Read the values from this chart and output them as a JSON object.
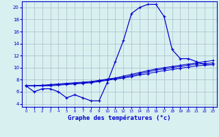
{
  "hours": [
    0,
    1,
    2,
    3,
    4,
    5,
    6,
    7,
    8,
    9,
    10,
    11,
    12,
    13,
    14,
    15,
    16,
    17,
    18,
    19,
    20,
    21,
    22,
    23
  ],
  "temp_main": [
    7.0,
    6.0,
    6.5,
    6.5,
    6.0,
    5.0,
    5.5,
    5.0,
    4.5,
    4.5,
    7.5,
    11.0,
    14.5,
    19.0,
    20.0,
    20.5,
    20.5,
    18.5,
    13.0,
    11.5,
    11.5,
    11.0,
    10.5,
    10.5
  ],
  "line_avg1": [
    7.0,
    7.0,
    7.1,
    7.2,
    7.3,
    7.4,
    7.5,
    7.6,
    7.7,
    7.9,
    8.1,
    8.3,
    8.6,
    8.9,
    9.2,
    9.5,
    9.8,
    10.0,
    10.2,
    10.4,
    10.6,
    10.8,
    11.0,
    11.2
  ],
  "line_avg2": [
    7.0,
    7.0,
    7.0,
    7.1,
    7.2,
    7.3,
    7.4,
    7.5,
    7.6,
    7.8,
    8.0,
    8.2,
    8.4,
    8.7,
    9.0,
    9.3,
    9.6,
    9.8,
    10.0,
    10.2,
    10.4,
    10.6,
    10.7,
    10.8
  ],
  "line_avg3": [
    7.0,
    7.0,
    7.0,
    7.0,
    7.1,
    7.2,
    7.3,
    7.4,
    7.5,
    7.7,
    7.9,
    8.1,
    8.3,
    8.5,
    8.8,
    9.0,
    9.3,
    9.5,
    9.7,
    9.9,
    10.1,
    10.3,
    10.4,
    10.5
  ],
  "line_color": "#0000cc",
  "bg_color": "#d8f0f0",
  "grid_color": "#aabbcc",
  "xlabel": "Graphe des températures (°c)",
  "ylim": [
    3.5,
    21.0
  ],
  "xlim": [
    -0.5,
    23.5
  ],
  "yticks": [
    4,
    6,
    8,
    10,
    12,
    14,
    16,
    18,
    20
  ],
  "xticks": [
    0,
    1,
    2,
    3,
    4,
    5,
    6,
    7,
    8,
    9,
    10,
    11,
    12,
    13,
    14,
    15,
    16,
    17,
    18,
    19,
    20,
    21,
    22,
    23
  ]
}
